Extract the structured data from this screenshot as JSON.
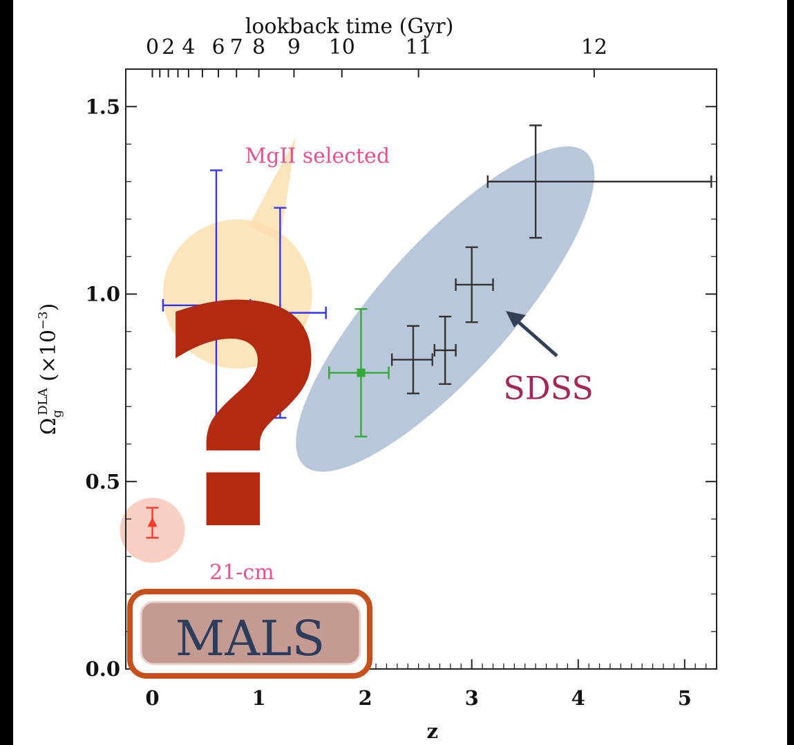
{
  "chart_data": {
    "type": "scatter",
    "xlabel": "z",
    "ylabel": "Ω",
    "ylabel_sub": "g",
    "ylabel_sup": "DLA",
    "ylabel_unit": "(×10",
    "ylabel_unit_exp": "−3",
    "ylabel_unit_close": ")",
    "top_axis_label": "lookback time (Gyr)",
    "xlim": [
      -0.25,
      5.3
    ],
    "ylim": [
      0.0,
      1.6
    ],
    "x_ticks": [
      {
        "value": 0,
        "label": "0"
      },
      {
        "value": 1,
        "label": "1"
      },
      {
        "value": 2,
        "label": "2"
      },
      {
        "value": 3,
        "label": "3"
      },
      {
        "value": 4,
        "label": "4"
      },
      {
        "value": 5,
        "label": "5"
      }
    ],
    "y_ticks": [
      {
        "value": 0.0,
        "label": "0.0"
      },
      {
        "value": 0.5,
        "label": "0.5"
      },
      {
        "value": 1.0,
        "label": "1.0"
      },
      {
        "value": 1.5,
        "label": "1.5"
      }
    ],
    "top_ticks": [
      {
        "label": "0",
        "z": 0.0
      },
      {
        "label": "2",
        "z": 0.15
      },
      {
        "label": "4",
        "z": 0.34
      },
      {
        "label": "6",
        "z": 0.62
      },
      {
        "label": "7",
        "z": 0.79
      },
      {
        "label": "8",
        "z": 1.0
      },
      {
        "label": "9",
        "z": 1.33
      },
      {
        "label": "10",
        "z": 1.78
      },
      {
        "label": "11",
        "z": 2.5
      },
      {
        "label": "12",
        "z": 4.15
      }
    ],
    "series": [
      {
        "color": "#ff3b30",
        "marker": "triangle",
        "points": [
          {
            "x": 0.0,
            "y": 0.39,
            "xerr": [
              0.0,
              0.0
            ],
            "yerr": [
              0.04,
              0.04
            ]
          }
        ]
      },
      {
        "color": "#3333ff",
        "marker": "circle",
        "points": [
          {
            "x": 0.6,
            "y": 0.97,
            "xerr": [
              0.5,
              0.32
            ],
            "yerr": [
              0.36,
              0.36
            ]
          },
          {
            "x": 1.2,
            "y": 0.95,
            "xerr": [
              0.28,
              0.43
            ],
            "yerr": [
              0.28,
              0.28
            ]
          }
        ]
      },
      {
        "color": "#33aa33",
        "marker": "square",
        "points": [
          {
            "x": 1.96,
            "y": 0.79,
            "xerr": [
              0.3,
              0.26
            ],
            "yerr": [
              0.17,
              0.17
            ]
          }
        ]
      },
      {
        "color": "#333333",
        "marker": "none",
        "points": [
          {
            "x": 2.45,
            "y": 0.825,
            "xerr": [
              0.2,
              0.18
            ],
            "yerr": [
              0.09,
              0.09
            ]
          },
          {
            "x": 2.75,
            "y": 0.85,
            "xerr": [
              0.1,
              0.1
            ],
            "yerr": [
              0.09,
              0.09
            ]
          },
          {
            "x": 3.0,
            "y": 1.025,
            "xerr": [
              0.15,
              0.2
            ],
            "yerr": [
              0.1,
              0.1
            ]
          },
          {
            "x": 3.6,
            "y": 1.3,
            "xerr": [
              0.45,
              1.65
            ],
            "yerr": [
              0.15,
              0.15
            ]
          }
        ]
      }
    ],
    "annotations": {
      "mgii": "MgII selected",
      "twentyone": "21-cm",
      "sdss": "SDSS",
      "question": "?",
      "mals": "MALS"
    },
    "colors": {
      "mgii_text": "#e8518f",
      "twentyone_text": "#e8518f",
      "sdss_text": "#a3285a",
      "question_mark": "#b22a0f",
      "mals_box_fill": "#c59a93",
      "mals_box_border": "#c4501c",
      "mals_text": "#2c3e5c",
      "sdss_ellipse": "#9aafc9",
      "mgii_bubble": "#fbdfb2",
      "twentyone_circle": "#f8c3b5",
      "sdss_arrow": "#344055"
    }
  }
}
